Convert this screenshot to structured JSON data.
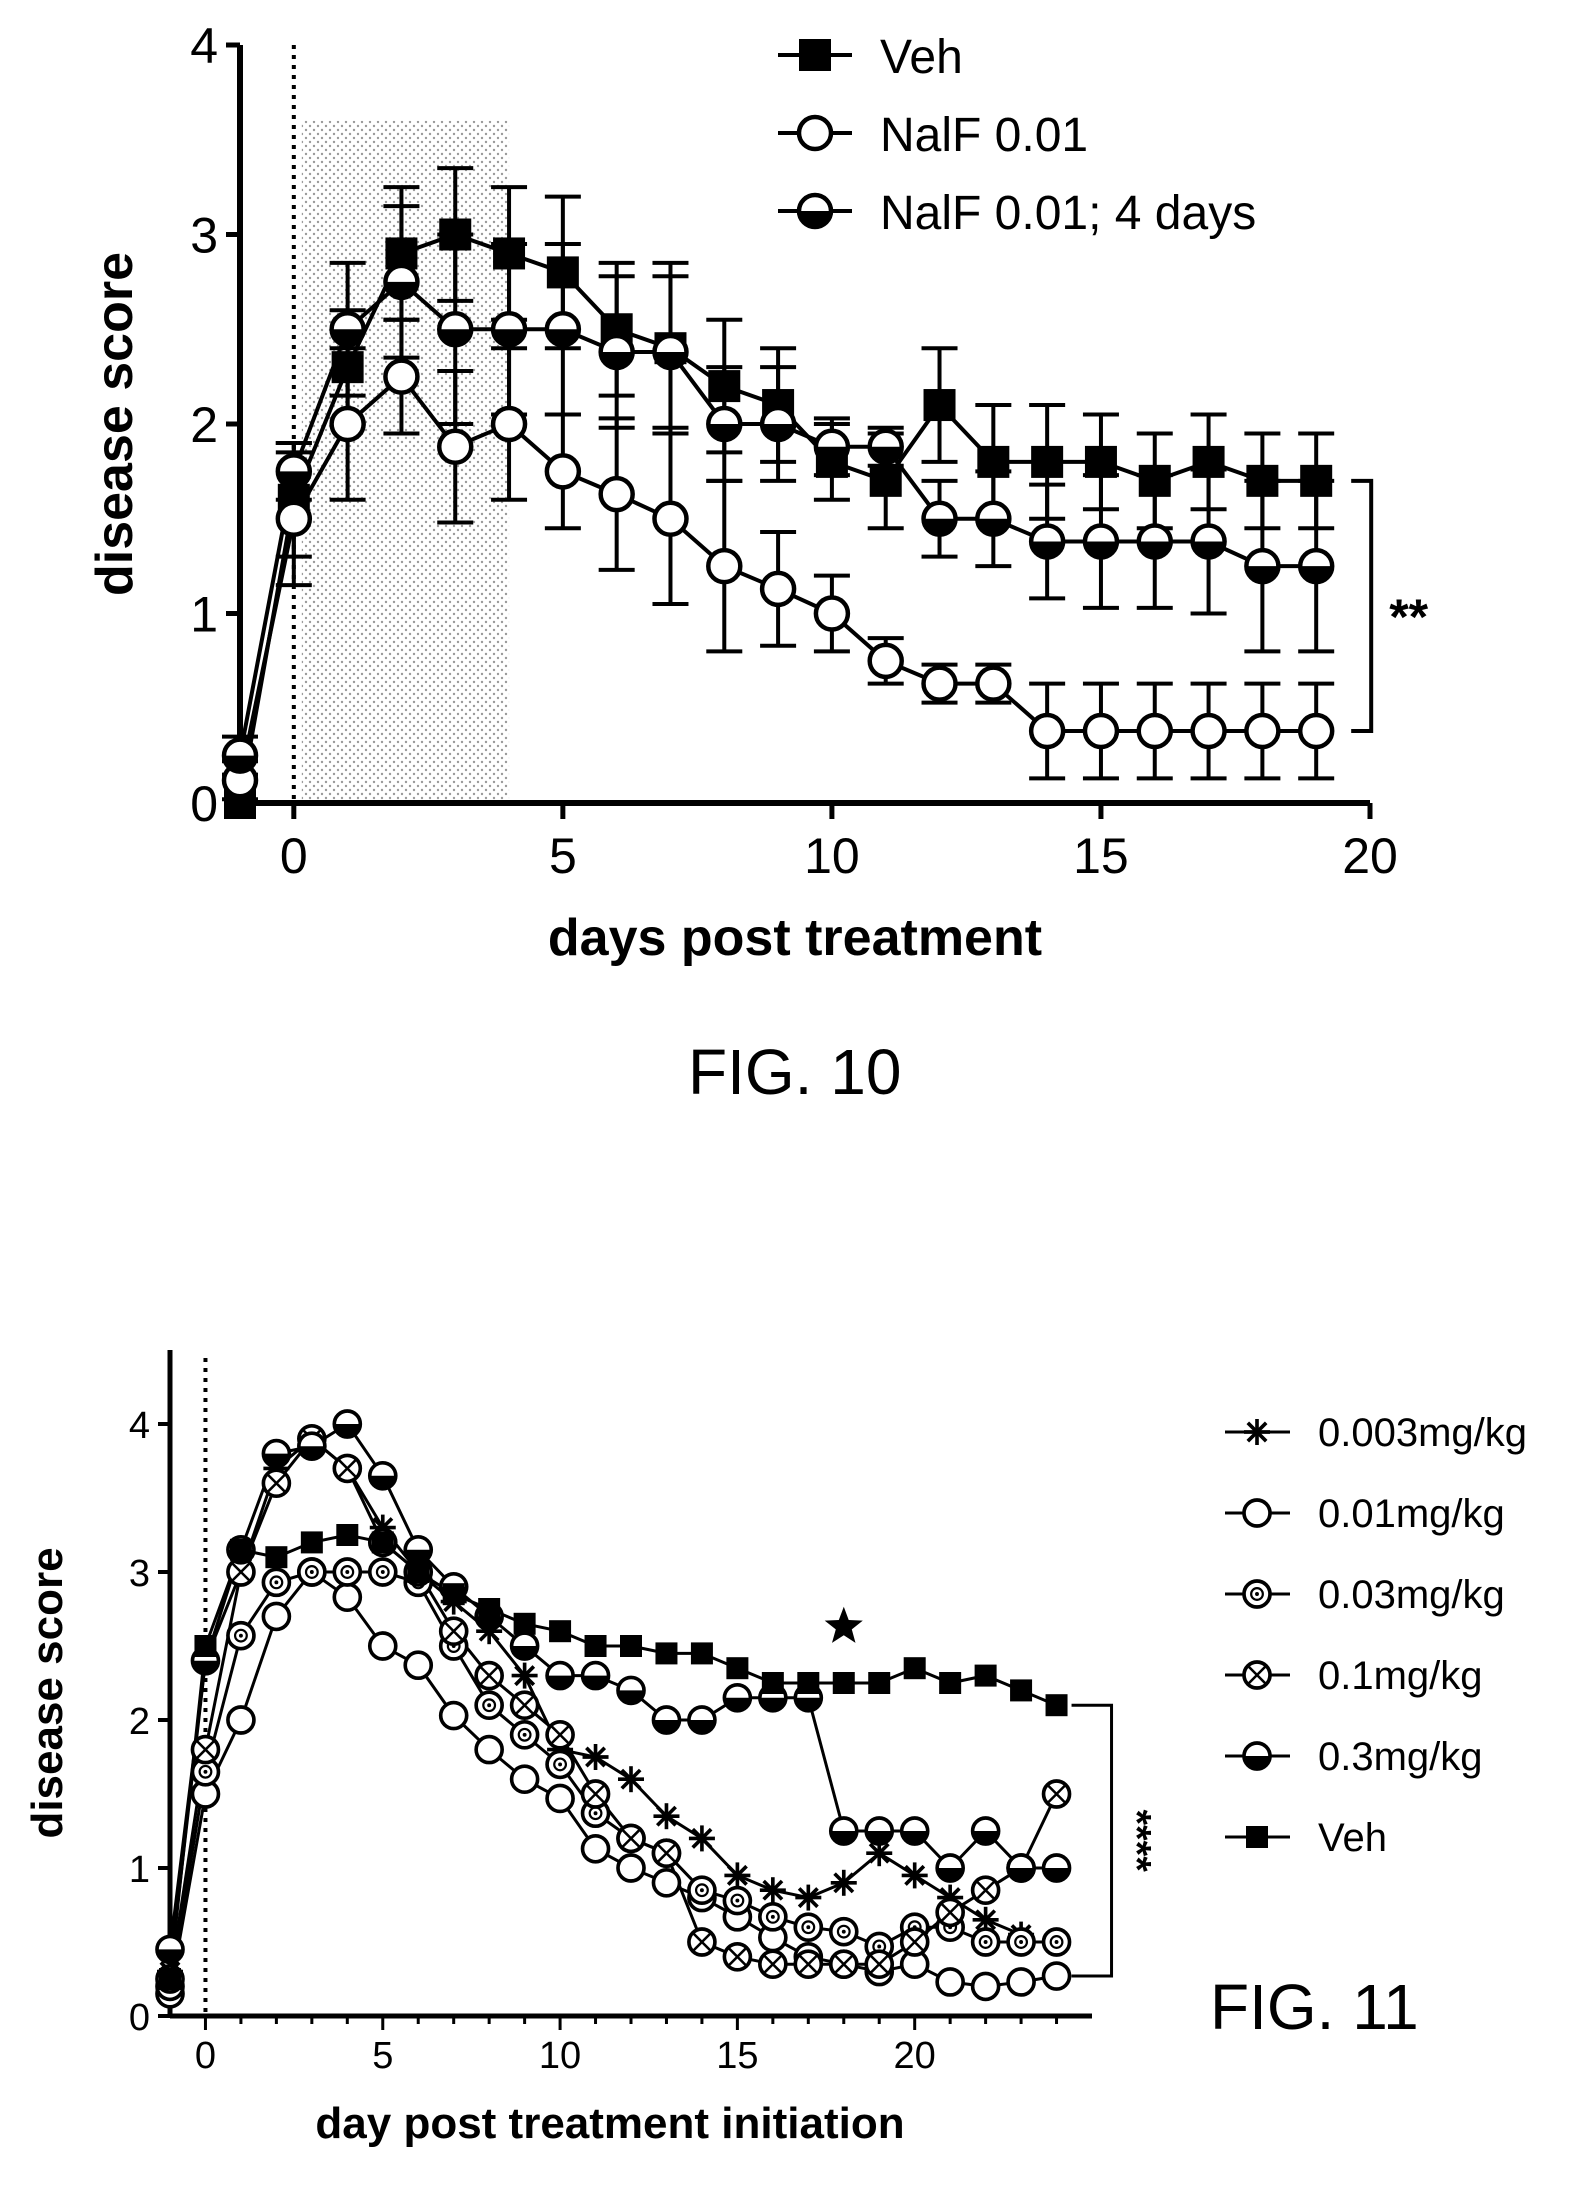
{
  "figures": [
    {
      "caption": "FIG. 10"
    },
    {
      "caption": "FIG. 11"
    }
  ],
  "chart_data": [
    {
      "type": "line",
      "xlabel": "days post treatment",
      "ylabel": "disease score",
      "xlim": [
        -1,
        20
      ],
      "ylim": [
        0,
        4
      ],
      "xticks": [
        0,
        5,
        10,
        15,
        20
      ],
      "yticks": [
        0,
        1,
        2,
        3,
        4
      ],
      "treatment_window": [
        0,
        4
      ],
      "treatment_start_line": 0,
      "legend_position": "top-right",
      "significance": "**",
      "significance_between": [
        "Veh",
        "NalF 0.01"
      ],
      "series": [
        {
          "name": "Veh",
          "marker": "filled-square",
          "x": [
            -1,
            0,
            1,
            2,
            3,
            4,
            5,
            6,
            7,
            8,
            9,
            10,
            11,
            12,
            13,
            14,
            15,
            16,
            17,
            18,
            19
          ],
          "y": [
            0,
            1.6,
            2.3,
            2.9,
            3.0,
            2.9,
            2.8,
            2.5,
            2.4,
            2.2,
            2.1,
            1.8,
            1.7,
            2.1,
            1.8,
            1.8,
            1.8,
            1.7,
            1.8,
            1.7,
            1.7
          ],
          "err": [
            0,
            0.3,
            0.3,
            0.35,
            0.35,
            0.35,
            0.4,
            0.35,
            0.45,
            0.35,
            0.3,
            0.2,
            0.25,
            0.3,
            0.3,
            0.3,
            0.25,
            0.25,
            0.25,
            0.25,
            0.25
          ]
        },
        {
          "name": "NalF 0.01",
          "marker": "open-circle",
          "x": [
            -1,
            0,
            1,
            2,
            3,
            4,
            5,
            6,
            7,
            8,
            9,
            10,
            11,
            12,
            13,
            14,
            15,
            16,
            17,
            18,
            19
          ],
          "y": [
            0.12,
            1.5,
            2.0,
            2.25,
            1.88,
            2.0,
            1.75,
            1.63,
            1.5,
            1.25,
            1.13,
            1.0,
            0.75,
            0.63,
            0.63,
            0.38,
            0.38,
            0.38,
            0.38,
            0.38,
            0.38
          ],
          "err": [
            0.1,
            0.35,
            0.4,
            0.3,
            0.4,
            0.4,
            0.3,
            0.4,
            0.45,
            0.45,
            0.3,
            0.2,
            0.12,
            0.1,
            0.1,
            0.25,
            0.25,
            0.25,
            0.25,
            0.25,
            0.25
          ]
        },
        {
          "name": "NalF 0.01; 4 days",
          "marker": "half-filled-circle",
          "x": [
            -1,
            0,
            1,
            2,
            3,
            4,
            5,
            6,
            7,
            8,
            9,
            10,
            11,
            12,
            13,
            14,
            15,
            16,
            17,
            18,
            19
          ],
          "y": [
            0.25,
            1.75,
            2.5,
            2.75,
            2.5,
            2.5,
            2.5,
            2.38,
            2.38,
            2.0,
            2.0,
            1.88,
            1.88,
            1.5,
            1.5,
            1.38,
            1.38,
            1.38,
            1.38,
            1.25,
            1.25
          ],
          "err": [
            0.1,
            0.15,
            0.35,
            0.4,
            0.5,
            0.45,
            0.45,
            0.4,
            0.4,
            0.3,
            0.3,
            0.15,
            0.1,
            0.2,
            0.25,
            0.3,
            0.35,
            0.35,
            0.38,
            0.45,
            0.45
          ]
        }
      ]
    },
    {
      "type": "line",
      "xlabel": "day post treatment initiation",
      "ylabel": "disease score",
      "xlim": [
        -1,
        25
      ],
      "ylim": [
        0,
        4.5
      ],
      "xticks": [
        0,
        5,
        10,
        15,
        20
      ],
      "yticks": [
        0,
        1,
        2,
        3,
        4
      ],
      "treatment_start_line": 0,
      "legend_position": "right",
      "significance": "****",
      "significance_between": [
        "Veh",
        "0.01mg/kg"
      ],
      "star_marker": {
        "x": 18,
        "y": 2.63
      },
      "series": [
        {
          "name": "0.003mg/kg",
          "marker": "asterisk",
          "x": [
            -1,
            0,
            1,
            2,
            3,
            4,
            5,
            6,
            7,
            8,
            9,
            10,
            11,
            12,
            13,
            14,
            15,
            16,
            17,
            18,
            19,
            20,
            21,
            22,
            23
          ],
          "y": [
            0.3,
            2.4,
            3.0,
            3.7,
            3.9,
            3.7,
            3.3,
            3.0,
            2.8,
            2.6,
            2.3,
            1.8,
            1.75,
            1.6,
            1.35,
            1.2,
            0.95,
            0.85,
            0.8,
            0.9,
            1.1,
            0.95,
            0.8,
            0.65,
            0.55
          ]
        },
        {
          "name": "0.01mg/kg",
          "marker": "open-circle",
          "x": [
            -1,
            0,
            1,
            2,
            3,
            4,
            5,
            6,
            7,
            8,
            9,
            10,
            11,
            12,
            13,
            14,
            15,
            16,
            17,
            18,
            19,
            20,
            21,
            22,
            23,
            24
          ],
          "y": [
            0.15,
            1.5,
            2.0,
            2.7,
            3.0,
            2.83,
            2.5,
            2.37,
            2.03,
            1.8,
            1.6,
            1.47,
            1.13,
            1.0,
            0.9,
            0.8,
            0.67,
            0.53,
            0.4,
            0.35,
            0.3,
            0.35,
            0.23,
            0.2,
            0.23,
            0.27
          ]
        },
        {
          "name": "0.03mg/kg",
          "marker": "dotted-circle",
          "x": [
            -1,
            0,
            1,
            2,
            3,
            4,
            5,
            6,
            7,
            8,
            9,
            10,
            11,
            12,
            13,
            14,
            15,
            16,
            17,
            18,
            19,
            20,
            21,
            22,
            23,
            24
          ],
          "y": [
            0.2,
            1.65,
            2.57,
            2.93,
            3.0,
            3.0,
            3.0,
            2.93,
            2.5,
            2.1,
            1.9,
            1.7,
            1.37,
            1.2,
            1.1,
            0.85,
            0.78,
            0.67,
            0.6,
            0.57,
            0.47,
            0.6,
            0.6,
            0.5,
            0.5,
            0.5
          ]
        },
        {
          "name": "0.1mg/kg",
          "marker": "crossed-circle",
          "x": [
            -1,
            0,
            1,
            2,
            3,
            4,
            5,
            6,
            7,
            8,
            9,
            10,
            11,
            12,
            13,
            14,
            15,
            16,
            17,
            18,
            19,
            20,
            21,
            22,
            23,
            24
          ],
          "y": [
            0.25,
            1.8,
            3.0,
            3.6,
            3.9,
            3.7,
            3.2,
            3.0,
            2.6,
            2.3,
            2.1,
            1.9,
            1.5,
            1.2,
            1.1,
            0.5,
            0.4,
            0.35,
            0.35,
            0.35,
            0.35,
            0.5,
            0.7,
            0.85,
            1.0,
            1.5
          ]
        },
        {
          "name": "0.3mg/kg",
          "marker": "half-filled-circle",
          "x": [
            -1,
            0,
            1,
            2,
            3,
            4,
            5,
            6,
            7,
            8,
            9,
            10,
            11,
            12,
            13,
            14,
            15,
            16,
            17,
            18,
            19,
            20,
            21,
            22,
            23,
            24
          ],
          "y": [
            0.45,
            2.4,
            3.15,
            3.8,
            3.85,
            4.0,
            3.65,
            3.15,
            2.9,
            2.7,
            2.5,
            2.3,
            2.3,
            2.2,
            2.0,
            2.0,
            2.15,
            2.15,
            2.15,
            1.25,
            1.25,
            1.25,
            1.0,
            1.25,
            1.0,
            1.0
          ]
        },
        {
          "name": "Veh",
          "marker": "filled-square",
          "x": [
            -1,
            0,
            1,
            2,
            3,
            4,
            5,
            6,
            7,
            8,
            9,
            10,
            11,
            12,
            13,
            14,
            15,
            16,
            17,
            18,
            19,
            20,
            21,
            22,
            23,
            24
          ],
          "y": [
            0.25,
            2.5,
            3.15,
            3.1,
            3.2,
            3.25,
            3.2,
            3.0,
            2.85,
            2.75,
            2.65,
            2.6,
            2.5,
            2.5,
            2.45,
            2.45,
            2.35,
            2.25,
            2.25,
            2.25,
            2.25,
            2.35,
            2.25,
            2.3,
            2.2,
            2.1
          ]
        }
      ]
    }
  ]
}
